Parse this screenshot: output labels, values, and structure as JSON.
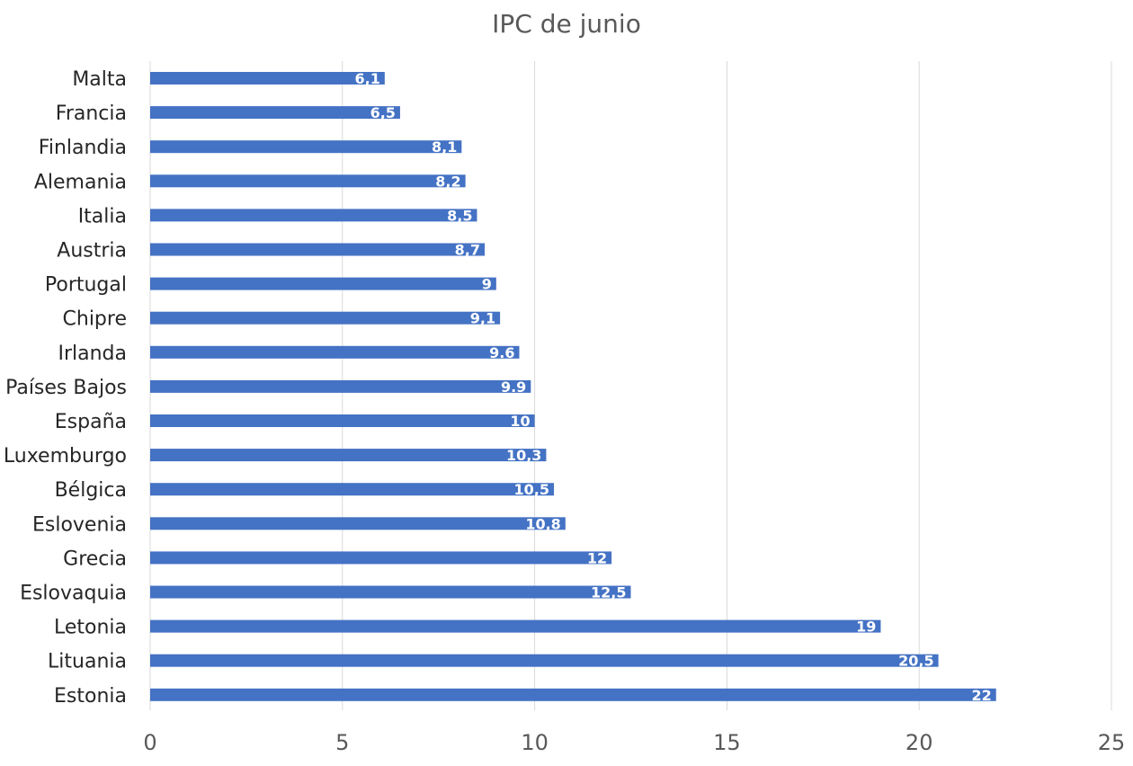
{
  "chart_data": {
    "type": "bar",
    "orientation": "horizontal",
    "title": "IPC de junio",
    "xlabel": "",
    "ylabel": "",
    "xlim": [
      0,
      25
    ],
    "xticks": [
      "0",
      "5",
      "10",
      "15",
      "20",
      "25"
    ],
    "grid": true,
    "legend": "none",
    "categories": [
      "Malta",
      "Francia",
      "Finlandia",
      "Alemania",
      "Italia",
      "Austria",
      "Portugal",
      "Chipre",
      "Irlanda",
      "Países Bajos",
      "España",
      "Luxemburgo",
      "Bélgica",
      "Eslovenia",
      "Grecia",
      "Eslovaquia",
      "Letonia",
      "Lituania",
      "Estonia"
    ],
    "values": [
      6.1,
      6.5,
      8.1,
      8.2,
      8.5,
      8.7,
      9,
      9.1,
      9.6,
      9.9,
      10,
      10.3,
      10.5,
      10.8,
      12,
      12.5,
      19,
      20.5,
      22
    ],
    "data_labels": [
      "6,1",
      "6,5",
      "8,1",
      "8,2",
      "8,5",
      "8,7",
      "9",
      "9,1",
      "9.6",
      "9.9",
      "10",
      "10,3",
      "10,5",
      "10,8",
      "12",
      "12,5",
      "19",
      "20,5",
      "22"
    ],
    "colors": {
      "bar": "#4472C4",
      "grid": "#D9D9D9",
      "axis_text": "#595959",
      "category_text": "#262626",
      "data_label": "#FFFFFF"
    }
  }
}
